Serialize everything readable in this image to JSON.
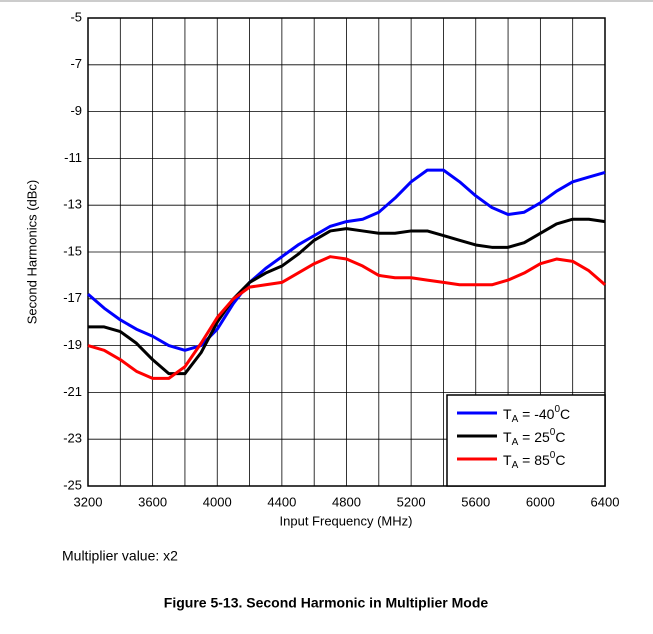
{
  "chart_data": {
    "type": "line",
    "xlabel": "Input Frequency (MHz)",
    "ylabel": "Second Harmonics (dBc)",
    "note": "Multiplier value: x2",
    "caption": "Figure 5-13. Second Harmonic in Multiplier Mode",
    "x": [
      3200,
      3300,
      3400,
      3500,
      3600,
      3700,
      3800,
      3900,
      4000,
      4100,
      4200,
      4300,
      4400,
      4500,
      4600,
      4700,
      4800,
      4900,
      5000,
      5100,
      5200,
      5300,
      5400,
      5500,
      5600,
      5700,
      5800,
      5900,
      6000,
      6100,
      6200,
      6300,
      6400
    ],
    "series": [
      {
        "name": [
          "T",
          "A",
          " = -40",
          "0",
          "C"
        ],
        "color": "#0000ff",
        "values": [
          -16.8,
          -17.4,
          -17.9,
          -18.3,
          -18.6,
          -19.0,
          -19.2,
          -19.0,
          -18.3,
          -17.2,
          -16.3,
          -15.7,
          -15.2,
          -14.7,
          -14.3,
          -13.9,
          -13.7,
          -13.6,
          -13.3,
          -12.7,
          -12.0,
          -11.5,
          -11.5,
          -12.0,
          -12.6,
          -13.1,
          -13.4,
          -13.3,
          -12.9,
          -12.4,
          -12.0,
          -11.8,
          -11.6
        ]
      },
      {
        "name": [
          "T",
          "A",
          " = 25",
          "0",
          "C"
        ],
        "color": "#000000",
        "values": [
          -18.2,
          -18.2,
          -18.4,
          -18.9,
          -19.6,
          -20.2,
          -20.2,
          -19.3,
          -18.0,
          -17.0,
          -16.3,
          -15.9,
          -15.6,
          -15.1,
          -14.5,
          -14.1,
          -14.0,
          -14.1,
          -14.2,
          -14.2,
          -14.1,
          -14.1,
          -14.3,
          -14.5,
          -14.7,
          -14.8,
          -14.8,
          -14.6,
          -14.2,
          -13.8,
          -13.6,
          -13.6,
          -13.7
        ]
      },
      {
        "name": [
          "T",
          "A",
          " = 85",
          "0",
          "C"
        ],
        "color": "#ff0000",
        "values": [
          -19.0,
          -19.2,
          -19.6,
          -20.1,
          -20.4,
          -20.4,
          -19.9,
          -18.9,
          -17.8,
          -17.0,
          -16.5,
          -16.4,
          -16.3,
          -15.9,
          -15.5,
          -15.2,
          -15.3,
          -15.6,
          -16.0,
          -16.1,
          -16.1,
          -16.2,
          -16.3,
          -16.4,
          -16.4,
          -16.4,
          -16.2,
          -15.9,
          -15.5,
          -15.3,
          -15.4,
          -15.8,
          -16.4
        ]
      }
    ],
    "xlim": [
      3200,
      6400
    ],
    "xticks": [
      3200,
      3600,
      4000,
      4400,
      4800,
      5200,
      5600,
      6000,
      6400
    ],
    "xminorticks": [
      3400,
      3800,
      4200,
      4600,
      5000,
      5400,
      5800,
      6200
    ],
    "ylim": [
      -25,
      -5
    ],
    "yticks": [
      -25,
      -23,
      -21,
      -19,
      -17,
      -15,
      -13,
      -11,
      -9,
      -7,
      -5
    ],
    "grid": true,
    "legend": "lower right"
  }
}
